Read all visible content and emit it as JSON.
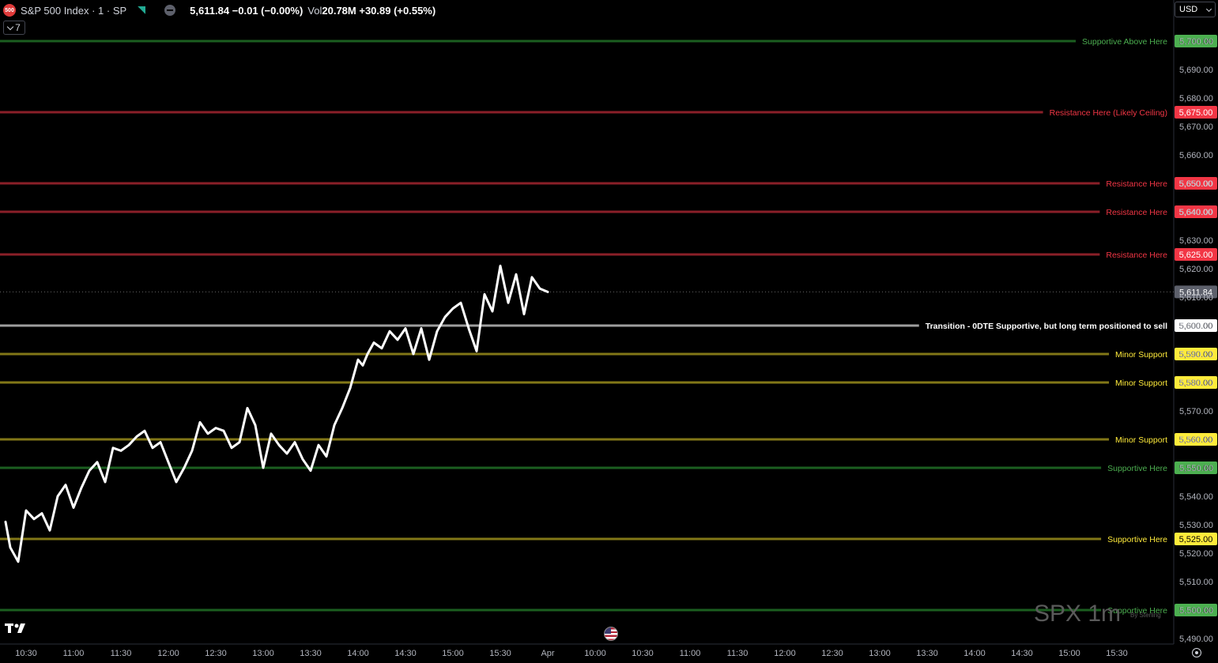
{
  "header": {
    "logo_text": "500",
    "symbol": "S&P 500 Index · 1 · SP",
    "ohlc": "5,611.84 −0.01 (−0.00%)",
    "vol_label": "Vol",
    "vol_value": "20.78M +30.89 (+0.55%)"
  },
  "indicators_toggle": "7",
  "currency": "USD",
  "watermark": "SPX 1m",
  "watermark_sub": "By Sterling",
  "colors": {
    "background": "#000000",
    "price_line": "#ffffff",
    "red": "#f23645",
    "red_line": "#8a1f28",
    "green_label": "#4caf50",
    "green_line": "#1b5e20",
    "yellow": "#ffeb3b",
    "yellow_line": "#827717",
    "gray_line": "#9e9e9e",
    "axis_text": "#b2b5be"
  },
  "chart_data": {
    "type": "line",
    "y_ticks": [
      5490,
      5500,
      5510,
      5520,
      5530,
      5540,
      5550,
      5560,
      5570,
      5580,
      5590,
      5600,
      5610,
      5620,
      5630,
      5640,
      5650,
      5660,
      5670,
      5680,
      5690,
      5700
    ],
    "x_ticks": [
      "10:30",
      "11:00",
      "11:30",
      "12:00",
      "12:30",
      "13:00",
      "13:30",
      "14:00",
      "14:30",
      "15:00",
      "15:30",
      "Apr",
      "10:00",
      "10:30",
      "11:00",
      "11:30",
      "12:00",
      "12:30",
      "13:00",
      "13:30",
      "14:00",
      "14:30",
      "15:00",
      "15:30"
    ],
    "last_price": 5611.84,
    "last_price_label": "5,611.84",
    "levels": [
      {
        "price": 5700,
        "price_label": "5,700.00",
        "label": "Supportive Above Here",
        "color": "green"
      },
      {
        "price": 5675,
        "price_label": "5,675.00",
        "label": "Resistance Here (Likely Ceiling)",
        "color": "red"
      },
      {
        "price": 5650,
        "price_label": "5,650.00",
        "label": "Resistance Here",
        "color": "red"
      },
      {
        "price": 5640,
        "price_label": "5,640.00",
        "label": "Resistance Here",
        "color": "red"
      },
      {
        "price": 5625,
        "price_label": "5,625.00",
        "label": "Resistance Here",
        "color": "red"
      },
      {
        "price": 5600,
        "price_label": "5,600.00",
        "label": "Transition - 0DTE Supportive, but long term positioned to sell",
        "color": "gray"
      },
      {
        "price": 5590,
        "price_label": "5,590.00",
        "label": "Minor Support",
        "color": "yellow"
      },
      {
        "price": 5580,
        "price_label": "5,580.00",
        "label": "Minor Support",
        "color": "yellow"
      },
      {
        "price": 5560,
        "price_label": "5,560.00",
        "label": "Minor Support",
        "color": "yellow"
      },
      {
        "price": 5550,
        "price_label": "5,550.00",
        "label": "Supportive Here",
        "color": "green"
      },
      {
        "price": 5525,
        "price_label": "5,525.00",
        "label": "Supportive Here",
        "color": "yellow"
      },
      {
        "price": 5500,
        "price_label": "5,500.00",
        "label": "Supportive Here",
        "color": "green"
      }
    ],
    "series": [
      {
        "x": [
          "10:17",
          "10:20",
          "10:25",
          "10:30",
          "10:35",
          "10:40",
          "10:45",
          "10:50",
          "10:55",
          "11:00",
          "11:05",
          "11:10",
          "11:15",
          "11:20",
          "11:25",
          "11:30",
          "11:35",
          "11:40",
          "11:45",
          "11:50",
          "11:55",
          "12:00",
          "12:05",
          "12:10",
          "12:15",
          "12:20",
          "12:25",
          "12:30",
          "12:35",
          "12:40",
          "12:45",
          "12:50",
          "12:55",
          "13:00",
          "13:05",
          "13:10",
          "13:15",
          "13:20",
          "13:25",
          "13:30",
          "13:35",
          "13:40",
          "13:45",
          "13:50",
          "13:55",
          "14:00",
          "14:03",
          "14:06",
          "14:10",
          "14:15",
          "14:20",
          "14:25",
          "14:30",
          "14:35",
          "14:40",
          "14:45",
          "14:50",
          "14:55",
          "15:00",
          "15:05",
          "15:10",
          "15:15",
          "15:20",
          "15:25",
          "15:30",
          "15:35",
          "15:40",
          "15:45",
          "15:50",
          "15:55",
          "16:00"
        ],
        "values": [
          5531,
          5522,
          5517,
          5535,
          5532,
          5534,
          5528,
          5540,
          5544,
          5536,
          5543,
          5549,
          5552,
          5545,
          5557,
          5556,
          5558,
          5561,
          5563,
          5557,
          5559,
          5552,
          5545,
          5550,
          5556,
          5566,
          5562,
          5564,
          5563,
          5557,
          5559,
          5571,
          5565,
          5550,
          5562,
          5558,
          5555,
          5559,
          5553,
          5549,
          5558,
          5554,
          5565,
          5571,
          5578,
          5588,
          5586,
          5590,
          5594,
          5592,
          5598,
          5595,
          5599,
          5590,
          5599,
          5588,
          5598,
          5603,
          5606,
          5608,
          5599,
          5591,
          5611,
          5605,
          5621,
          5608,
          5618,
          5604,
          5617,
          5613,
          5611.84
        ]
      }
    ]
  }
}
